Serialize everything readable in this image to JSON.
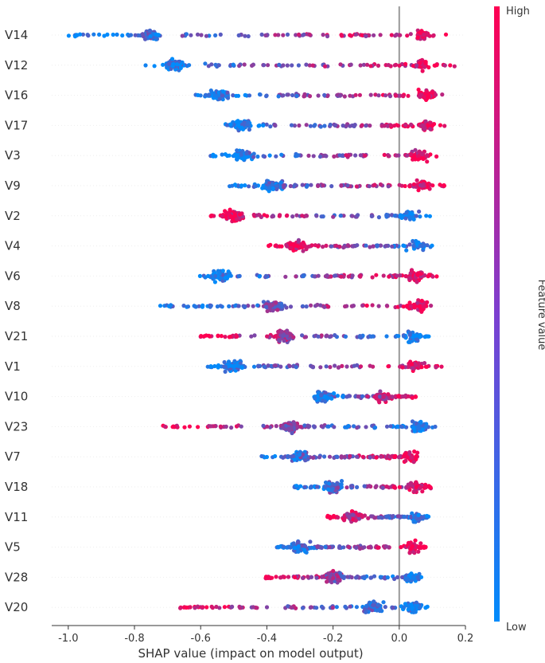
{
  "chart_data": {
    "type": "scatter",
    "subtype": "shap-beeswarm-summary",
    "title": "",
    "xlabel": "SHAP value (impact on model output)",
    "ylabel": "",
    "xlim": [
      -1.05,
      0.2
    ],
    "xticks": [
      -1.0,
      -0.8,
      -0.6,
      -0.4,
      -0.2,
      0.0,
      0.2
    ],
    "xtick_labels": [
      "-1.0",
      "-0.8",
      "-0.6",
      "-0.4",
      "-0.2",
      "0.0",
      "0.2"
    ],
    "zero_line": 0.0,
    "colorbar": {
      "title": "Feature value",
      "high_label": "High",
      "low_label": "Low",
      "high_color": "#ff0052",
      "low_color": "#008bfb"
    },
    "features": [
      {
        "name": "V14",
        "min": -1.0,
        "max": 0.16,
        "core": [
          -0.75,
          0.07
        ],
        "lowSide": "left"
      },
      {
        "name": "V12",
        "min": -0.8,
        "max": 0.17,
        "core": [
          -0.68,
          0.07
        ],
        "lowSide": "left"
      },
      {
        "name": "V16",
        "min": -0.62,
        "max": 0.13,
        "core": [
          -0.54,
          0.08
        ],
        "lowSide": "left"
      },
      {
        "name": "V17",
        "min": -0.53,
        "max": 0.14,
        "core": [
          -0.48,
          0.08
        ],
        "lowSide": "left"
      },
      {
        "name": "V3",
        "min": -0.57,
        "max": 0.12,
        "core": [
          -0.47,
          0.06
        ],
        "lowSide": "left"
      },
      {
        "name": "V9",
        "min": -0.52,
        "max": 0.15,
        "core": [
          -0.38,
          0.07
        ],
        "lowSide": "left"
      },
      {
        "name": "V2",
        "min": -0.57,
        "max": 0.1,
        "core": [
          -0.5,
          0.03
        ],
        "lowSide": "right"
      },
      {
        "name": "V4",
        "min": -0.4,
        "max": 0.1,
        "core": [
          -0.31,
          0.05
        ],
        "lowSide": "right"
      },
      {
        "name": "V6",
        "min": -0.63,
        "max": 0.12,
        "core": [
          -0.54,
          0.05
        ],
        "lowSide": "left"
      },
      {
        "name": "V8",
        "min": -0.75,
        "max": 0.1,
        "core": [
          -0.38,
          0.06
        ],
        "lowSide": "left"
      },
      {
        "name": "V21",
        "min": -0.62,
        "max": 0.09,
        "core": [
          -0.35,
          0.04
        ],
        "lowSide": "right"
      },
      {
        "name": "V1",
        "min": -0.58,
        "max": 0.13,
        "core": [
          -0.5,
          0.05
        ],
        "lowSide": "left"
      },
      {
        "name": "V10",
        "min": -0.26,
        "max": 0.05,
        "core": [
          -0.23,
          -0.05
        ],
        "lowSide": "left"
      },
      {
        "name": "V23",
        "min": -0.72,
        "max": 0.11,
        "core": [
          -0.33,
          0.06
        ],
        "lowSide": "right"
      },
      {
        "name": "V7",
        "min": -0.42,
        "max": 0.06,
        "core": [
          -0.3,
          0.03
        ],
        "lowSide": "left"
      },
      {
        "name": "V18",
        "min": -0.33,
        "max": 0.1,
        "core": [
          -0.2,
          0.05
        ],
        "lowSide": "left"
      },
      {
        "name": "V11",
        "min": -0.22,
        "max": 0.09,
        "core": [
          -0.14,
          0.05
        ],
        "lowSide": "right"
      },
      {
        "name": "V5",
        "min": -0.37,
        "max": 0.08,
        "core": [
          -0.3,
          0.04
        ],
        "lowSide": "left"
      },
      {
        "name": "V28",
        "min": -0.41,
        "max": 0.07,
        "core": [
          -0.2,
          0.04
        ],
        "lowSide": "right"
      },
      {
        "name": "V20",
        "min": -0.67,
        "max": 0.1,
        "core": [
          -0.08,
          0.04
        ],
        "lowSide": "right"
      }
    ]
  }
}
